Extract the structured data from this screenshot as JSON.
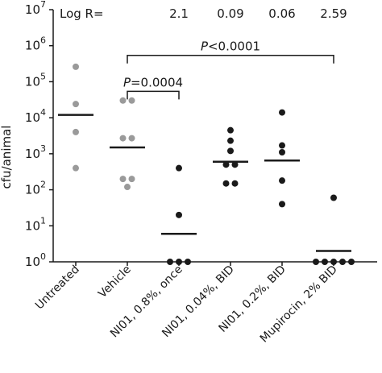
{
  "chart_data": {
    "type": "scatter",
    "yscale": "log",
    "ylim": [
      1,
      10000000
    ],
    "ylabel": "cfu/animal",
    "yticks": [
      {
        "value": 1,
        "base": "10",
        "exp": "0"
      },
      {
        "value": 10,
        "base": "10",
        "exp": "1"
      },
      {
        "value": 100,
        "base": "10",
        "exp": "2"
      },
      {
        "value": 1000,
        "base": "10",
        "exp": "3"
      },
      {
        "value": 10000,
        "base": "10",
        "exp": "4"
      },
      {
        "value": 100000,
        "base": "10",
        "exp": "5"
      },
      {
        "value": 1000000,
        "base": "10",
        "exp": "6"
      },
      {
        "value": 10000000,
        "base": "10",
        "exp": "7"
      }
    ],
    "logr_title": "Log R=",
    "categories": [
      {
        "label": "Untreated",
        "color": "#9a9a9a",
        "values": [
          260000,
          24000,
          4000,
          400
        ],
        "median": 12000,
        "logr": ""
      },
      {
        "label": "Vehicle",
        "color": "#9a9a9a",
        "values": [
          30000,
          21000,
          2700,
          2300,
          200,
          160,
          120
        ],
        "median": 1500,
        "logr": ""
      },
      {
        "label": "NI01, 0.8%, once",
        "color": "#1a1a1a",
        "values": [
          400,
          20,
          1,
          1,
          1
        ],
        "median": 6,
        "logr": "2.1"
      },
      {
        "label": "NI01, 0.04%, BID",
        "color": "#1a1a1a",
        "values": [
          4500,
          2300,
          1200,
          500,
          380,
          150,
          150
        ],
        "median": 600,
        "logr": "0.09"
      },
      {
        "label": "NI01, 0.2%, BID",
        "color": "#1a1a1a",
        "values": [
          14000,
          1700,
          1100,
          180,
          40
        ],
        "median": 650,
        "logr": "0.06"
      },
      {
        "label": "Mupirocin, 2% BID",
        "color": "#1a1a1a",
        "values": [
          60,
          1,
          1,
          1,
          1,
          1
        ],
        "median": 2,
        "logr": "2.59"
      }
    ],
    "comparisons": [
      {
        "from": 1,
        "to": 5,
        "label_prefix": "P",
        "label_rest": "<0.0001",
        "level_value": 1000000
      },
      {
        "from": 1,
        "to": 2,
        "label_prefix": "P",
        "label_rest": "=0.0004",
        "level_value": 100000
      }
    ]
  }
}
